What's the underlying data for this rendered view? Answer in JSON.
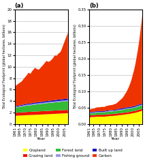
{
  "chart_data": [
    {
      "type": "area",
      "stacked": true,
      "title": "(a)",
      "xlabel": "Year",
      "ylabel": "Total Ecological Footprint (global hectares, billions)",
      "x": [
        1961,
        1962,
        1963,
        1964,
        1965,
        1966,
        1967,
        1968,
        1969,
        1970,
        1971,
        1972,
        1973,
        1974,
        1975,
        1976,
        1977,
        1978,
        1979,
        1980,
        1981,
        1982,
        1983,
        1984,
        1985,
        1986,
        1987,
        1988,
        1989,
        1990,
        1991,
        1992,
        1993,
        1994,
        1995,
        1996,
        1997,
        1998,
        1999,
        2000,
        2001,
        2002,
        2003,
        2004,
        2005,
        2006,
        2007,
        2008
      ],
      "xlim": [
        1961,
        2008
      ],
      "xticks": [
        1961,
        1965,
        1970,
        1975,
        1980,
        1985,
        1990,
        1995,
        2000,
        2005
      ],
      "ylim": [
        0,
        20
      ],
      "yticks": [
        0,
        2,
        4,
        6,
        8,
        10,
        12,
        14,
        16,
        18,
        20
      ],
      "grid": true,
      "legend": "lower center",
      "series": [
        {
          "name": "Cropland",
          "color": "#FFFF00",
          "values": [
            1.4,
            1.42,
            1.44,
            1.45,
            1.46,
            1.47,
            1.48,
            1.49,
            1.5,
            1.51,
            1.52,
            1.53,
            1.54,
            1.54,
            1.55,
            1.56,
            1.57,
            1.58,
            1.59,
            1.6,
            1.61,
            1.62,
            1.62,
            1.63,
            1.64,
            1.65,
            1.66,
            1.67,
            1.68,
            1.69,
            1.7,
            1.71,
            1.72,
            1.73,
            1.74,
            1.75,
            1.76,
            1.77,
            1.78,
            1.79,
            1.8,
            1.81,
            1.82,
            1.83,
            1.84,
            1.85,
            1.86,
            1.87
          ]
        },
        {
          "name": "Grazing land",
          "color": "#EE1100",
          "values": [
            0.5,
            0.51,
            0.52,
            0.52,
            0.53,
            0.53,
            0.54,
            0.54,
            0.54,
            0.55,
            0.55,
            0.55,
            0.56,
            0.56,
            0.56,
            0.56,
            0.57,
            0.57,
            0.57,
            0.57,
            0.57,
            0.57,
            0.57,
            0.58,
            0.58,
            0.58,
            0.58,
            0.58,
            0.58,
            0.58,
            0.58,
            0.58,
            0.58,
            0.58,
            0.58,
            0.58,
            0.58,
            0.58,
            0.58,
            0.58,
            0.58,
            0.58,
            0.58,
            0.58,
            0.58,
            0.58,
            0.58,
            0.58
          ]
        },
        {
          "name": "Forest land",
          "color": "#33BB33",
          "values": [
            0.9,
            0.92,
            0.94,
            0.95,
            0.97,
            0.99,
            1.01,
            1.03,
            1.05,
            1.07,
            1.09,
            1.1,
            1.12,
            1.13,
            1.14,
            1.16,
            1.18,
            1.2,
            1.22,
            1.23,
            1.24,
            1.25,
            1.26,
            1.27,
            1.28,
            1.29,
            1.31,
            1.33,
            1.35,
            1.36,
            1.37,
            1.38,
            1.39,
            1.4,
            1.41,
            1.42,
            1.43,
            1.44,
            1.45,
            1.46,
            1.47,
            1.48,
            1.49,
            1.5,
            1.51,
            1.52,
            1.53,
            1.54
          ]
        },
        {
          "name": "Fishing ground",
          "color": "#9999EE",
          "values": [
            0.12,
            0.12,
            0.13,
            0.13,
            0.14,
            0.14,
            0.14,
            0.14,
            0.15,
            0.15,
            0.15,
            0.16,
            0.16,
            0.16,
            0.16,
            0.17,
            0.17,
            0.17,
            0.17,
            0.17,
            0.17,
            0.17,
            0.17,
            0.17,
            0.17,
            0.17,
            0.17,
            0.18,
            0.18,
            0.18,
            0.18,
            0.18,
            0.18,
            0.18,
            0.18,
            0.18,
            0.18,
            0.18,
            0.18,
            0.18,
            0.18,
            0.18,
            0.18,
            0.18,
            0.18,
            0.18,
            0.18,
            0.18
          ]
        },
        {
          "name": "Built up land",
          "color": "#1111BB",
          "values": [
            0.12,
            0.12,
            0.13,
            0.13,
            0.13,
            0.14,
            0.14,
            0.14,
            0.15,
            0.15,
            0.15,
            0.16,
            0.16,
            0.16,
            0.16,
            0.17,
            0.17,
            0.17,
            0.18,
            0.18,
            0.18,
            0.18,
            0.19,
            0.19,
            0.19,
            0.2,
            0.2,
            0.2,
            0.21,
            0.21,
            0.21,
            0.21,
            0.22,
            0.22,
            0.22,
            0.23,
            0.23,
            0.23,
            0.24,
            0.24,
            0.24,
            0.24,
            0.25,
            0.25,
            0.25,
            0.26,
            0.26,
            0.27
          ]
        },
        {
          "name": "Carbon",
          "color": "#EE3300",
          "values": [
            3.5,
            3.6,
            3.7,
            3.8,
            3.9,
            4.0,
            4.1,
            4.3,
            4.5,
            4.7,
            4.9,
            5.1,
            5.4,
            5.3,
            5.2,
            5.5,
            5.7,
            5.9,
            6.1,
            5.9,
            5.8,
            5.7,
            5.8,
            6.0,
            6.2,
            6.4,
            6.6,
            6.8,
            7.0,
            6.9,
            6.8,
            6.9,
            7.0,
            7.2,
            7.4,
            7.7,
            7.8,
            7.7,
            7.9,
            8.1,
            8.2,
            8.5,
            9.0,
            9.5,
            10.0,
            10.5,
            11.0,
            11.5
          ]
        }
      ]
    },
    {
      "type": "area",
      "stacked": true,
      "title": "(b)",
      "xlabel": "Year",
      "ylabel": "Total Ecological Footprint (global hectares, billions)",
      "x": [
        1961,
        1962,
        1963,
        1964,
        1965,
        1966,
        1967,
        1968,
        1969,
        1970,
        1971,
        1972,
        1973,
        1974,
        1975,
        1976,
        1977,
        1978,
        1979,
        1980,
        1981,
        1982,
        1983,
        1984,
        1985,
        1986,
        1987,
        1988,
        1989,
        1990,
        1991,
        1992,
        1993,
        1994,
        1995,
        1996,
        1997,
        1998,
        1999,
        2000,
        2001,
        2002,
        2003,
        2004,
        2005,
        2006,
        2007,
        2008
      ],
      "xlim": [
        1961,
        2008
      ],
      "xticks": [
        1961,
        1965,
        1970,
        1975,
        1980,
        1985,
        1990,
        1995,
        2000,
        2005
      ],
      "ylim": [
        0,
        0.35
      ],
      "yticks": [
        {
          "value": 0,
          "label": "0.00"
        },
        0.05,
        {
          "value": 0.1,
          "label": "0.10"
        },
        0.15,
        {
          "value": 0.2,
          "label": "0.20"
        },
        0.25,
        {
          "value": 0.3,
          "label": "0.30"
        },
        0.35
      ],
      "grid": true,
      "legend": "lower center",
      "series": [
        {
          "name": "Cropland",
          "color": "#FFFF00",
          "values": [
            0.02,
            0.02,
            0.021,
            0.021,
            0.021,
            0.021,
            0.022,
            0.022,
            0.022,
            0.022,
            0.022,
            0.022,
            0.022,
            0.022,
            0.022,
            0.023,
            0.023,
            0.023,
            0.024,
            0.024,
            0.024,
            0.024,
            0.025,
            0.025,
            0.025,
            0.026,
            0.026,
            0.027,
            0.027,
            0.027,
            0.028,
            0.028,
            0.029,
            0.029,
            0.03,
            0.03,
            0.031,
            0.031,
            0.032,
            0.033,
            0.033,
            0.034,
            0.035,
            0.036,
            0.037,
            0.038,
            0.039,
            0.04
          ]
        },
        {
          "name": "Grazing land",
          "color": "#EE1100",
          "values": [
            0.006,
            0.006,
            0.006,
            0.006,
            0.006,
            0.006,
            0.006,
            0.006,
            0.006,
            0.006,
            0.006,
            0.006,
            0.006,
            0.006,
            0.006,
            0.006,
            0.006,
            0.006,
            0.006,
            0.006,
            0.006,
            0.006,
            0.006,
            0.006,
            0.006,
            0.006,
            0.006,
            0.006,
            0.006,
            0.006,
            0.006,
            0.006,
            0.006,
            0.006,
            0.006,
            0.006,
            0.006,
            0.006,
            0.006,
            0.006,
            0.006,
            0.006,
            0.006,
            0.006,
            0.006,
            0.006,
            0.006,
            0.006
          ]
        },
        {
          "name": "Forest land",
          "color": "#33BB33",
          "values": [
            0.006,
            0.006,
            0.006,
            0.006,
            0.006,
            0.006,
            0.007,
            0.007,
            0.007,
            0.007,
            0.007,
            0.007,
            0.007,
            0.007,
            0.007,
            0.008,
            0.008,
            0.008,
            0.008,
            0.008,
            0.008,
            0.008,
            0.008,
            0.008,
            0.008,
            0.009,
            0.009,
            0.009,
            0.009,
            0.009,
            0.009,
            0.01,
            0.01,
            0.01,
            0.01,
            0.01,
            0.01,
            0.01,
            0.01,
            0.01,
            0.01,
            0.01,
            0.011,
            0.011,
            0.011,
            0.011,
            0.011,
            0.011
          ]
        },
        {
          "name": "Fishing ground",
          "color": "#9999EE",
          "values": [
            0.002,
            0.002,
            0.002,
            0.002,
            0.002,
            0.002,
            0.002,
            0.002,
            0.002,
            0.002,
            0.002,
            0.002,
            0.002,
            0.002,
            0.002,
            0.002,
            0.002,
            0.002,
            0.002,
            0.002,
            0.002,
            0.002,
            0.002,
            0.002,
            0.002,
            0.002,
            0.002,
            0.002,
            0.002,
            0.002,
            0.002,
            0.002,
            0.002,
            0.002,
            0.002,
            0.002,
            0.002,
            0.002,
            0.002,
            0.002,
            0.002,
            0.002,
            0.002,
            0.002,
            0.002,
            0.002,
            0.002,
            0.002
          ]
        },
        {
          "name": "Built up land",
          "color": "#1111BB",
          "values": [
            0.002,
            0.002,
            0.002,
            0.002,
            0.002,
            0.002,
            0.002,
            0.002,
            0.002,
            0.002,
            0.002,
            0.002,
            0.002,
            0.002,
            0.002,
            0.002,
            0.002,
            0.002,
            0.002,
            0.002,
            0.002,
            0.002,
            0.002,
            0.002,
            0.002,
            0.002,
            0.003,
            0.003,
            0.003,
            0.003,
            0.003,
            0.003,
            0.003,
            0.003,
            0.003,
            0.003,
            0.003,
            0.003,
            0.003,
            0.003,
            0.003,
            0.003,
            0.003,
            0.003,
            0.003,
            0.003,
            0.003,
            0.003
          ]
        },
        {
          "name": "Carbon",
          "color": "#EE3300",
          "values": [
            0.008,
            0.008,
            0.009,
            0.009,
            0.01,
            0.01,
            0.011,
            0.011,
            0.012,
            0.012,
            0.012,
            0.013,
            0.013,
            0.013,
            0.013,
            0.014,
            0.014,
            0.015,
            0.015,
            0.015,
            0.016,
            0.016,
            0.017,
            0.018,
            0.019,
            0.02,
            0.022,
            0.024,
            0.027,
            0.03,
            0.033,
            0.037,
            0.042,
            0.047,
            0.053,
            0.06,
            0.068,
            0.077,
            0.088,
            0.1,
            0.113,
            0.128,
            0.145,
            0.164,
            0.185,
            0.21,
            0.238,
            0.27
          ]
        }
      ]
    }
  ]
}
